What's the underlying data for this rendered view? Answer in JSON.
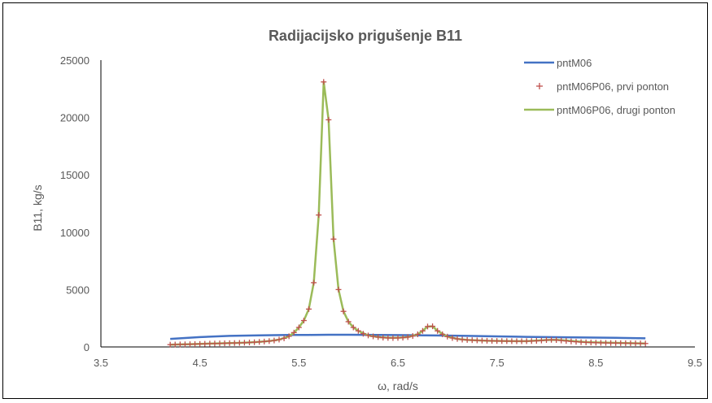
{
  "chart_data": {
    "type": "line",
    "title": "Radijacijsko prigušenje B11",
    "xlabel": "ω, rad/s",
    "ylabel": "B11, kg/s",
    "xlim": [
      3.5,
      9.5
    ],
    "ylim": [
      0,
      25000
    ],
    "x_ticks": [
      "3.5",
      "4.5",
      "5.5",
      "6.5",
      "7.5",
      "8.5",
      "9.5"
    ],
    "y_ticks": [
      "0",
      "5000",
      "10000",
      "15000",
      "20000",
      "25000"
    ],
    "grid": false,
    "legend_position": "top-right",
    "series": [
      {
        "name": "pntM06",
        "style": "line",
        "color": "#4472C4",
        "x": [
          4.2,
          4.5,
          4.8,
          5.1,
          5.4,
          5.6,
          5.8,
          6.0,
          6.3,
          6.6,
          6.9,
          7.2,
          7.5,
          7.8,
          8.1,
          8.4,
          8.7,
          9.0
        ],
        "y": [
          700,
          860,
          960,
          1010,
          1040,
          1050,
          1060,
          1060,
          1050,
          1030,
          1000,
          960,
          920,
          880,
          850,
          820,
          790,
          750
        ]
      },
      {
        "name": "pntM06P06, prvi ponton",
        "style": "markers",
        "color": "#C0504D",
        "x": [
          4.2,
          4.25,
          4.3,
          4.35,
          4.4,
          4.45,
          4.5,
          4.55,
          4.6,
          4.65,
          4.7,
          4.75,
          4.8,
          4.85,
          4.9,
          4.95,
          5.0,
          5.05,
          5.1,
          5.15,
          5.2,
          5.25,
          5.3,
          5.35,
          5.4,
          5.45,
          5.5,
          5.55,
          5.6,
          5.65,
          5.7,
          5.75,
          5.8,
          5.85,
          5.9,
          5.95,
          6.0,
          6.05,
          6.1,
          6.15,
          6.2,
          6.25,
          6.3,
          6.35,
          6.4,
          6.45,
          6.5,
          6.55,
          6.6,
          6.65,
          6.7,
          6.75,
          6.8,
          6.85,
          6.9,
          6.95,
          7.0,
          7.05,
          7.1,
          7.15,
          7.2,
          7.25,
          7.3,
          7.35,
          7.4,
          7.45,
          7.5,
          7.55,
          7.6,
          7.65,
          7.7,
          7.75,
          7.8,
          7.85,
          7.9,
          7.95,
          8.0,
          8.05,
          8.1,
          8.15,
          8.2,
          8.25,
          8.3,
          8.35,
          8.4,
          8.45,
          8.5,
          8.55,
          8.6,
          8.65,
          8.7,
          8.75,
          8.8,
          8.85,
          8.9,
          8.95,
          9.0
        ],
        "y": [
          200,
          210,
          220,
          230,
          240,
          250,
          260,
          275,
          290,
          300,
          310,
          320,
          330,
          340,
          355,
          370,
          390,
          410,
          440,
          470,
          510,
          560,
          640,
          750,
          930,
          1250,
          1700,
          2300,
          3300,
          5600,
          11500,
          23100,
          19800,
          9400,
          5000,
          3100,
          2200,
          1700,
          1400,
          1150,
          1000,
          920,
          860,
          810,
          790,
          780,
          790,
          810,
          860,
          950,
          1100,
          1400,
          1780,
          1800,
          1400,
          1100,
          900,
          780,
          700,
          640,
          610,
          590,
          570,
          555,
          540,
          530,
          520,
          515,
          510,
          505,
          500,
          500,
          505,
          515,
          530,
          560,
          600,
          620,
          600,
          560,
          520,
          480,
          450,
          420,
          400,
          385,
          370,
          360,
          350,
          340,
          335,
          330,
          325,
          320,
          315,
          310,
          300
        ]
      },
      {
        "name": "pntM06P06, drugi ponton",
        "style": "line",
        "color": "#9BBB59",
        "x": [
          4.2,
          4.3,
          4.4,
          4.5,
          4.6,
          4.7,
          4.8,
          4.9,
          5.0,
          5.1,
          5.2,
          5.3,
          5.4,
          5.45,
          5.5,
          5.55,
          5.6,
          5.65,
          5.7,
          5.75,
          5.8,
          5.85,
          5.9,
          5.95,
          6.0,
          6.05,
          6.1,
          6.2,
          6.3,
          6.4,
          6.5,
          6.6,
          6.7,
          6.75,
          6.8,
          6.85,
          6.9,
          7.0,
          7.1,
          7.2,
          7.4,
          7.6,
          7.8,
          8.0,
          8.1,
          8.2,
          8.4,
          8.6,
          8.8,
          9.0
        ],
        "y": [
          200,
          220,
          240,
          260,
          290,
          310,
          330,
          355,
          390,
          440,
          510,
          640,
          930,
          1250,
          1700,
          2300,
          3300,
          5600,
          11500,
          23100,
          19800,
          9400,
          5000,
          3100,
          2200,
          1700,
          1400,
          1000,
          860,
          790,
          790,
          860,
          1100,
          1400,
          1780,
          1800,
          1400,
          900,
          700,
          610,
          540,
          510,
          505,
          600,
          620,
          560,
          420,
          370,
          335,
          300
        ]
      }
    ]
  }
}
